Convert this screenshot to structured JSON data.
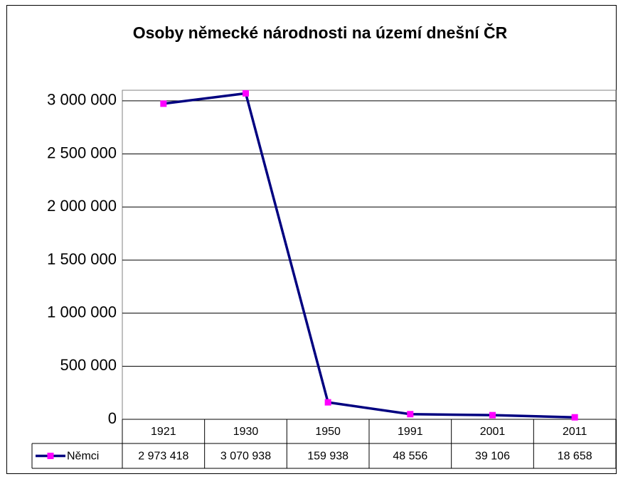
{
  "chart_data": {
    "type": "line",
    "title": "Osoby německé národnosti na území dnešní ČR",
    "categories": [
      "1921",
      "1930",
      "1950",
      "1991",
      "2001",
      "2011"
    ],
    "series": [
      {
        "name": "Němci",
        "color": "#000080",
        "marker_color": "#ff00ff",
        "values": [
          2973418,
          3070938,
          159938,
          48556,
          39106,
          18658
        ],
        "value_labels": [
          "2 973 418",
          "3 070 938",
          "159 938",
          "48 556",
          "39 106",
          "18 658"
        ]
      }
    ],
    "ylim": [
      0,
      3100000
    ],
    "yticks": [
      0,
      {
        "value": 500000,
        "label": "500 000"
      },
      {
        "value": 1000000,
        "label": "1 000 000"
      },
      {
        "value": 1500000,
        "label": "1 500 000"
      },
      {
        "value": 2000000,
        "label": "2 000 000"
      },
      {
        "value": 2500000,
        "label": "2 500 000"
      },
      {
        "value": 3000000,
        "label": "3 000 000"
      }
    ],
    "grid": true
  }
}
